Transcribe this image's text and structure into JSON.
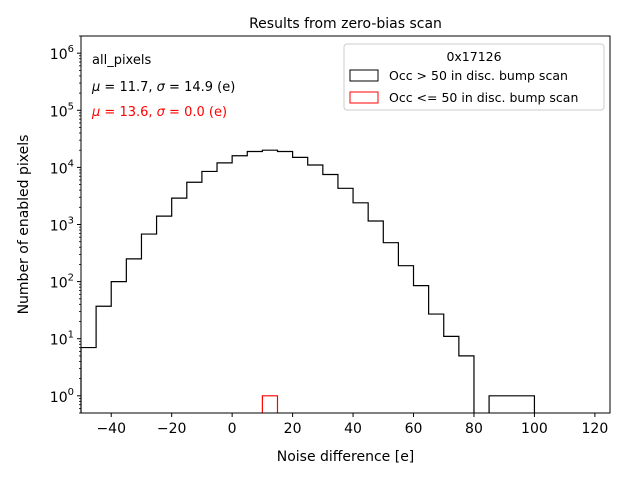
{
  "chart_data": {
    "type": "histogram",
    "title": "Results from zero-bias scan",
    "xlabel": "Noise difference [e]",
    "ylabel": "Number of enabled pixels",
    "xlim": [
      -50,
      125
    ],
    "ylim": [
      0.5,
      2000000
    ],
    "yscale": "log",
    "xticks": [
      -40,
      -20,
      0,
      20,
      40,
      60,
      80,
      100,
      120
    ],
    "xtick_labels": [
      "−40",
      "−20",
      "0",
      "20",
      "40",
      "60",
      "80",
      "100",
      "120"
    ],
    "yticks": [
      {
        "value": 1,
        "base": "10",
        "exp": "0"
      },
      {
        "value": 10,
        "base": "10",
        "exp": "1"
      },
      {
        "value": 100,
        "base": "10",
        "exp": "2"
      },
      {
        "value": 1000,
        "base": "10",
        "exp": "3"
      },
      {
        "value": 10000,
        "base": "10",
        "exp": "4"
      },
      {
        "value": 100000,
        "base": "10",
        "exp": "5"
      },
      {
        "value": 1000000,
        "base": "10",
        "exp": "6"
      }
    ],
    "legend_title": "0x17126",
    "legend_position": "top-right",
    "series": [
      {
        "name": "Occ > 50 in disc. bump scan",
        "color": "#000000",
        "bin_edges": [
          -50,
          -45,
          -40,
          -35,
          -30,
          -25,
          -20,
          -15,
          -10,
          -5,
          0,
          5,
          10,
          15,
          20,
          25,
          30,
          35,
          40,
          45,
          50,
          55,
          60,
          65,
          70,
          75,
          80,
          85,
          90,
          95,
          100
        ],
        "counts": [
          7,
          37,
          100,
          250,
          680,
          1400,
          2900,
          5500,
          8500,
          12000,
          16000,
          19000,
          20000,
          19000,
          15000,
          11000,
          7500,
          4300,
          2400,
          1150,
          480,
          190,
          85,
          27,
          11,
          5,
          0,
          1,
          1,
          1
        ]
      },
      {
        "name": "Occ <= 50 in disc. bump scan",
        "color": "#ff0000",
        "bin_edges": [
          10,
          15
        ],
        "counts": [
          1
        ]
      }
    ],
    "annotations": [
      {
        "text": "all_pixels",
        "color": "#000000"
      },
      {
        "text": "μ = 11.7, σ = 14.9 (e)",
        "color": "#000000"
      },
      {
        "text": "μ = 13.6, σ = 0.0 (e)",
        "color": "#ff0000"
      }
    ]
  }
}
